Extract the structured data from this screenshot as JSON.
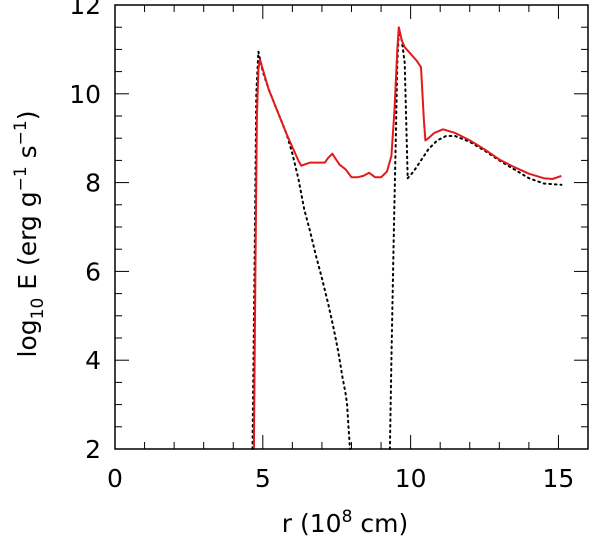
{
  "chart_data": {
    "type": "line",
    "xlabel": {
      "base": "r (10",
      "sup": "8",
      "tail": " cm)"
    },
    "ylabel": {
      "a": "log",
      "sub": "10",
      "b": " E (erg g",
      "sup1": "−1",
      "c": " s",
      "sup2": "−1",
      "d": ")"
    },
    "xlim": [
      0,
      16
    ],
    "ylim": [
      2,
      12
    ],
    "xticks": [
      0,
      5,
      10,
      15
    ],
    "xtick_labels": [
      "0",
      "5",
      "10",
      "15"
    ],
    "yticks": [
      2,
      4,
      6,
      8,
      10,
      12
    ],
    "ytick_labels": [
      "2",
      "4",
      "6",
      "8",
      "10",
      "12"
    ],
    "x_minor_step": 1,
    "y_minor_step": 0.5,
    "grid": false,
    "legend": "none",
    "colors": {
      "solid": "#e31a1c",
      "dotted": "#000000",
      "axes": "#000000"
    },
    "series": [
      {
        "style": "solid",
        "color": "#e31a1c",
        "x": [
          4.7,
          4.75,
          4.8,
          4.85,
          4.9,
          5.0,
          5.2,
          5.5,
          5.8,
          6.0,
          6.2,
          6.3,
          6.6,
          6.9,
          7.1,
          7.2,
          7.35,
          7.45,
          7.6,
          7.8,
          8.0,
          8.2,
          8.4,
          8.6,
          8.8,
          9.0,
          9.2,
          9.35,
          9.45,
          9.55,
          9.6,
          9.7,
          9.8,
          10.0,
          10.2,
          10.35,
          10.45,
          10.5,
          10.6,
          10.8,
          11.1,
          11.5,
          12.0,
          12.5,
          13.0,
          13.5,
          14.0,
          14.5,
          14.8,
          15.1
        ],
        "y": [
          2.0,
          6.0,
          9.5,
          10.55,
          10.78,
          10.55,
          10.1,
          9.6,
          9.1,
          8.8,
          8.5,
          8.38,
          8.45,
          8.45,
          8.45,
          8.55,
          8.65,
          8.55,
          8.4,
          8.3,
          8.12,
          8.12,
          8.15,
          8.22,
          8.12,
          8.12,
          8.25,
          8.6,
          9.6,
          11.0,
          11.5,
          11.2,
          11.05,
          10.9,
          10.75,
          10.6,
          9.4,
          8.95,
          9.0,
          9.12,
          9.2,
          9.12,
          8.95,
          8.75,
          8.52,
          8.35,
          8.2,
          8.1,
          8.08,
          8.15
        ]
      },
      {
        "style": "dotted",
        "color": "#000000",
        "x": [
          4.65,
          4.72,
          4.78,
          4.85,
          5.0,
          5.2,
          5.5,
          5.8,
          6.0,
          6.2,
          6.4,
          6.6,
          6.8,
          7.0,
          7.2,
          7.4,
          7.55,
          7.7,
          7.8,
          7.85,
          7.9,
          7.95
        ],
        "y": [
          2.0,
          6.0,
          10.0,
          10.95,
          10.5,
          10.1,
          9.6,
          9.1,
          8.65,
          8.1,
          7.4,
          6.9,
          6.35,
          5.85,
          5.3,
          4.7,
          4.2,
          3.6,
          3.25,
          3.0,
          2.5,
          2.0
        ]
      },
      {
        "style": "dotted",
        "color": "#000000",
        "x": [
          9.3,
          9.35,
          9.42,
          9.5,
          9.55,
          9.6,
          9.7,
          9.8,
          9.9
        ],
        "y": [
          2.0,
          4.0,
          6.5,
          9.0,
          10.7,
          11.4,
          11.2,
          10.7,
          8.1
        ]
      },
      {
        "style": "dotted",
        "color": "#000000",
        "x": [
          9.9,
          10.1,
          10.35,
          10.6,
          10.9,
          11.2,
          11.5,
          12.0,
          12.5,
          13.0,
          13.5,
          14.0,
          14.5,
          15.1
        ],
        "y": [
          8.1,
          8.25,
          8.5,
          8.75,
          8.95,
          9.05,
          9.05,
          8.92,
          8.72,
          8.5,
          8.3,
          8.1,
          7.98,
          7.95
        ]
      }
    ]
  }
}
